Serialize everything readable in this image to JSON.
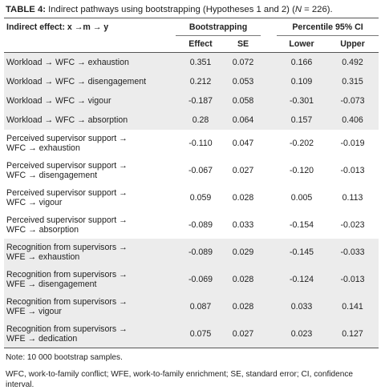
{
  "title": {
    "label": "TABLE 4:",
    "text_before": " Indirect pathways using bootstrapping (Hypotheses 1 and 2) (",
    "n_symbol": "N",
    "text_after": " = 226)."
  },
  "header": {
    "first_col": "Indirect effect: x →m → y",
    "group1": "Bootstrapping",
    "group2": "Percentile 95% CI",
    "cols": [
      "Effect",
      "SE",
      "Lower",
      "Upper"
    ]
  },
  "rows": [
    {
      "line1": "Workload → WFC → exhaustion",
      "line2": "",
      "effect": "0.351",
      "se": "0.072",
      "lower": "0.166",
      "upper": "0.492"
    },
    {
      "line1": "Workload → WFC → disengagement",
      "line2": "",
      "effect": "0.212",
      "se": "0.053",
      "lower": "0.109",
      "upper": "0.315"
    },
    {
      "line1": "Workload → WFC → vigour",
      "line2": "",
      "effect": "-0.187",
      "se": "0.058",
      "lower": "-0.301",
      "upper": "-0.073"
    },
    {
      "line1": "Workload → WFC → absorption",
      "line2": "",
      "effect": "0.28",
      "se": "0.064",
      "lower": "0.157",
      "upper": "0.406"
    },
    {
      "line1": "Perceived supervisor support →",
      "line2": "WFC → exhaustion",
      "effect": "-0.110",
      "se": "0.047",
      "lower": "-0.202",
      "upper": "-0.019"
    },
    {
      "line1": "Perceived supervisor support →",
      "line2": "WFC → disengagement",
      "effect": "-0.067",
      "se": "0.027",
      "lower": "-0.120",
      "upper": "-0.013"
    },
    {
      "line1": "Perceived supervisor support →",
      "line2": "WFC → vigour",
      "effect": "0.059",
      "se": "0.028",
      "lower": "0.005",
      "upper": "0.113"
    },
    {
      "line1": "Perceived supervisor support →",
      "line2": "WFC → absorption",
      "effect": "-0.089",
      "se": "0.033",
      "lower": "-0.154",
      "upper": "-0.023"
    },
    {
      "line1": "Recognition from supervisors →",
      "line2": "WFE → exhaustion",
      "effect": "-0.089",
      "se": "0.029",
      "lower": "-0.145",
      "upper": "-0.033"
    },
    {
      "line1": "Recognition from supervisors →",
      "line2": "WFE → disengagement",
      "effect": "-0.069",
      "se": "0.028",
      "lower": "-0.124",
      "upper": "-0.013"
    },
    {
      "line1": "Recognition from supervisors →",
      "line2": "WFE → vigour",
      "effect": "0.087",
      "se": "0.028",
      "lower": "0.033",
      "upper": "0.141"
    },
    {
      "line1": "Recognition from supervisors →",
      "line2": "WFE → dedication",
      "effect": "0.075",
      "se": "0.027",
      "lower": "0.023",
      "upper": "0.127"
    }
  ],
  "notes": {
    "note1": "Note: 10 000 bootstrap samples.",
    "note2": "WFC, work-to-family conflict; WFE, work-to-family enrichment; SE, standard error; CI, confidence interval."
  }
}
